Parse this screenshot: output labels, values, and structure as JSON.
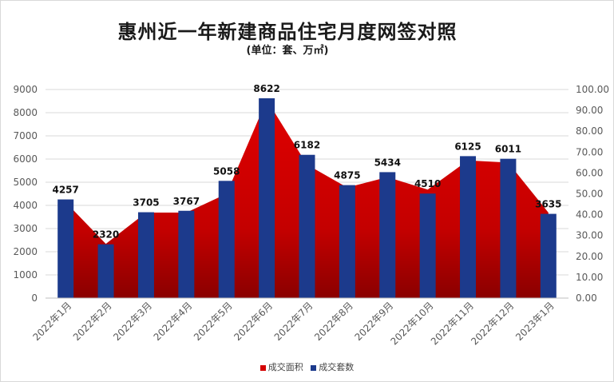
{
  "chart_data": {
    "type": "bar+area",
    "title": "惠州近一年新建商品住宅月度网签对照",
    "subtitle": "(单位：套、万㎡)",
    "categories": [
      "2022年1月",
      "2022年2月",
      "2022年3月",
      "2022年4月",
      "2022年5月",
      "2022年6月",
      "2022年7月",
      "2022年8月",
      "2022年9月",
      "2022年10月",
      "2022年11月",
      "2022年12月",
      "2023年1月"
    ],
    "series": [
      {
        "name": "成交面积",
        "type": "area",
        "axis": "right",
        "color": "#d40000",
        "values": [
          46,
          26,
          41,
          41,
          50,
          95,
          64,
          53,
          58,
          52,
          66,
          65,
          41
        ]
      },
      {
        "name": "成交套数",
        "type": "bar",
        "axis": "left",
        "color": "#1c3a8c",
        "values": [
          4257,
          2320,
          3705,
          3767,
          5058,
          8622,
          6182,
          4875,
          5434,
          4510,
          6125,
          6011,
          3635
        ]
      }
    ],
    "data_labels": [
      "4257",
      "2320",
      "3705",
      "3767",
      "5058",
      "8622",
      "6182",
      "4875",
      "5434",
      "4510",
      "6125",
      "6011",
      "3635"
    ],
    "y_left": {
      "min": 0,
      "max": 9000,
      "step": 1000,
      "ticks": [
        "0",
        "1000",
        "2000",
        "3000",
        "4000",
        "5000",
        "6000",
        "7000",
        "8000",
        "9000"
      ]
    },
    "y_right": {
      "min": 0,
      "max": 100,
      "step": 10,
      "ticks": [
        "0.00",
        "10.00",
        "20.00",
        "30.00",
        "40.00",
        "50.00",
        "60.00",
        "70.00",
        "80.00",
        "90.00",
        "100.00"
      ]
    },
    "grid": true,
    "legend_position": "bottom"
  },
  "legend": {
    "area_label": "成交面积",
    "bar_label": "成交套数"
  }
}
